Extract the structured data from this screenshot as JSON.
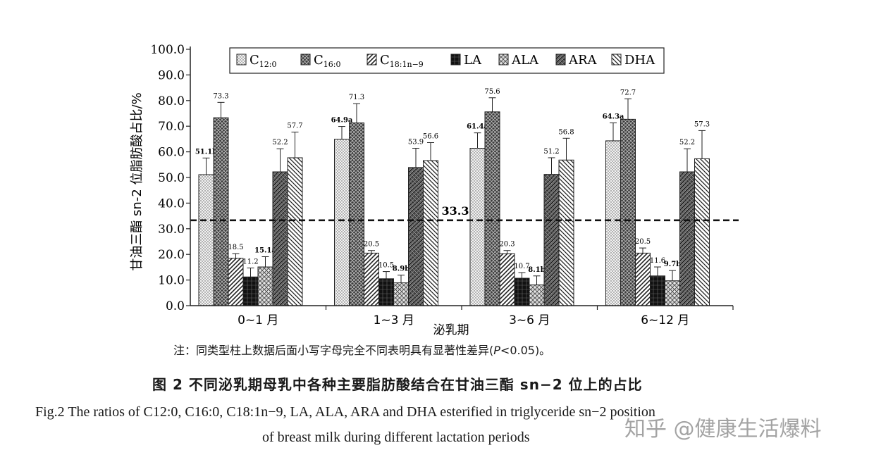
{
  "chart_data": {
    "type": "bar",
    "ylabel": "甘油三酯 sn-2 位脂肪酸占比/%",
    "xlabel": "泌乳期",
    "ylim": [
      0,
      100
    ],
    "yticks": [
      "0.0",
      "10.0",
      "20.0",
      "30.0",
      "40.0",
      "50.0",
      "60.0",
      "70.0",
      "80.0",
      "90.0",
      "100.0"
    ],
    "categories": [
      "0~1 月",
      "1~3 月",
      "3~6 月",
      "6~12 月"
    ],
    "legend_position": "top",
    "series": [
      {
        "name": "C12:0",
        "name_main": "C",
        "name_sub": "12:0",
        "pattern": "dots",
        "values": [
          51.1,
          64.9,
          61.4,
          64.3
        ],
        "errors": [
          6.5,
          5.0,
          6.0,
          7.0
        ],
        "labels": [
          "51.1b",
          "64.9a",
          "61.4a",
          "64.3a"
        ]
      },
      {
        "name": "C16:0",
        "name_main": "C",
        "name_sub": "16:0",
        "pattern": "crosshatch-dark",
        "values": [
          73.3,
          71.3,
          75.6,
          72.7
        ],
        "errors": [
          6.0,
          7.5,
          5.5,
          8.0
        ],
        "labels": [
          "73.3",
          "71.3",
          "75.6",
          "72.7"
        ]
      },
      {
        "name": "C18:1n-9",
        "name_main": "C",
        "name_sub": "18:1n−9",
        "pattern": "diag-fwd",
        "values": [
          18.5,
          20.5,
          20.3,
          20.5
        ],
        "errors": [
          1.8,
          1.0,
          1.2,
          2.0
        ],
        "labels": [
          "18.5",
          "20.5",
          "20.3",
          "20.5"
        ]
      },
      {
        "name": "LA",
        "name_main": "LA",
        "name_sub": "",
        "pattern": "dark-grid",
        "values": [
          11.2,
          10.5,
          10.7,
          11.6
        ],
        "errors": [
          3.5,
          2.8,
          2.2,
          3.5
        ],
        "labels": [
          "11.2",
          "10.5",
          "10.7",
          "11.6"
        ]
      },
      {
        "name": "ALA",
        "name_main": "ALA",
        "name_sub": "",
        "pattern": "zigzag",
        "values": [
          15.1,
          8.9,
          8.1,
          9.7
        ],
        "errors": [
          4.0,
          3.0,
          3.5,
          4.0
        ],
        "labels": [
          "15.1a",
          "8.9b",
          "8.1b",
          "9.7b"
        ]
      },
      {
        "name": "ARA",
        "name_main": "ARA",
        "name_sub": "",
        "pattern": "checker",
        "values": [
          52.2,
          53.9,
          51.2,
          52.2
        ],
        "errors": [
          9.0,
          7.5,
          6.5,
          9.0
        ],
        "labels": [
          "52.2",
          "53.9",
          "51.2",
          "52.2"
        ]
      },
      {
        "name": "DHA",
        "name_main": "DHA",
        "name_sub": "",
        "pattern": "diag-back",
        "values": [
          57.7,
          56.6,
          56.8,
          57.3
        ],
        "errors": [
          10.0,
          7.0,
          8.5,
          11.0
        ],
        "labels": [
          "57.7",
          "56.6",
          "56.8",
          "57.3"
        ]
      }
    ],
    "reference_line": {
      "value": 33.3,
      "label": "33.3"
    }
  },
  "caption": {
    "note_prefix": "注：同类型柱上数据后面小写字母完全不同表明具有显著性差异(",
    "note_p": "P",
    "note_suffix": "<0.05)。",
    "zh": "图 2   不同泌乳期母乳中各种主要脂肪酸结合在甘油三酯 sn−2 位上的占比",
    "en_line1": "Fig.2   The ratios of C12:0, C16:0, C18:1n−9, LA, ALA, ARA and DHA esterified in triglyceride sn−2 position",
    "en_line2": "of breast milk during different lactation periods"
  },
  "watermark": "知乎 @健康生活爆料"
}
